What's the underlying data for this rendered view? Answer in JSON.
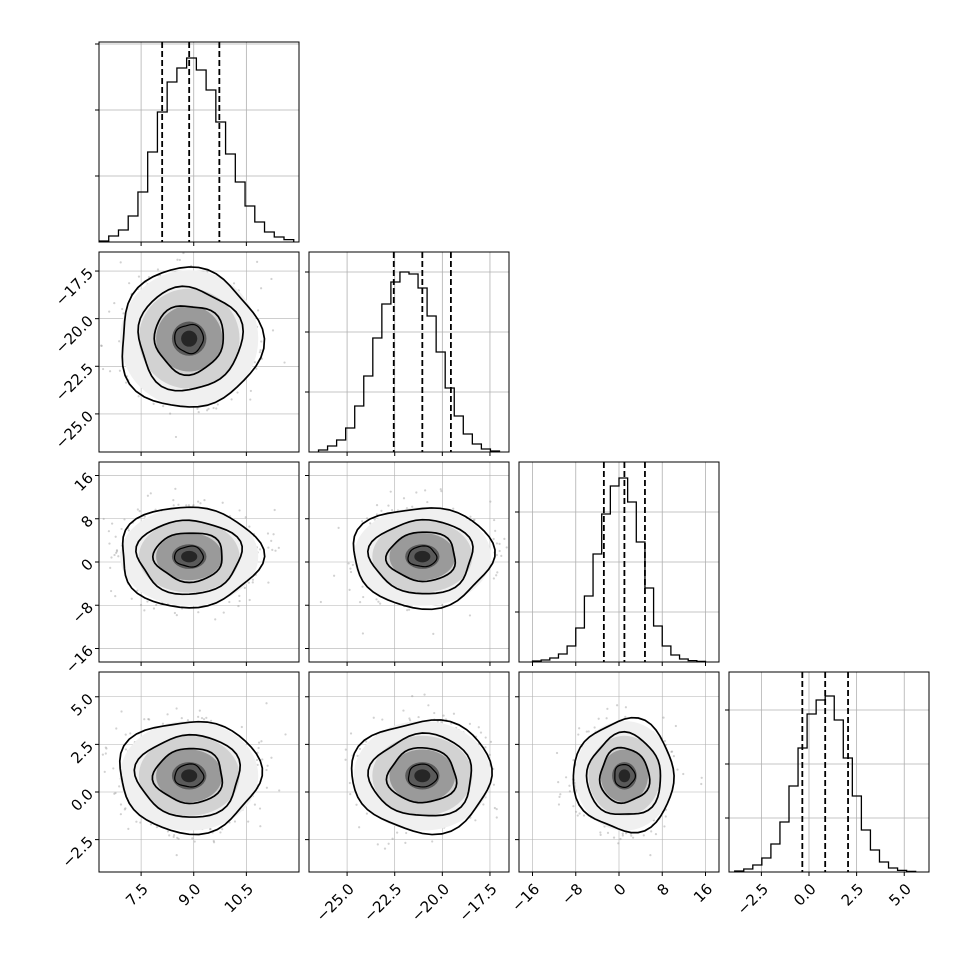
{
  "chart_data": {
    "type": "corner",
    "parameters": 4,
    "grid": true,
    "quantiles": [
      0.16,
      0.5,
      0.84
    ],
    "diagonal_histograms": [
      {
        "type": "histogram",
        "xlim": [
          6.3,
          12.0
        ],
        "ylim": [
          0,
          1.0
        ],
        "x_ticks": [
          "7.5",
          "9.0",
          "10.5"
        ],
        "x_tick_values": [
          7.5,
          9.0,
          10.5
        ],
        "y_grid_values": [
          0.33,
          0.66,
          0.99
        ],
        "quantile_lines": [
          8.1,
          8.87,
          9.73
        ],
        "bin_edges_range": [
          6.3,
          11.85
        ],
        "counts": [
          0.005,
          0.03,
          0.06,
          0.13,
          0.25,
          0.45,
          0.65,
          0.8,
          0.87,
          0.92,
          0.86,
          0.76,
          0.6,
          0.44,
          0.3,
          0.18,
          0.1,
          0.05,
          0.025,
          0.012
        ]
      },
      {
        "type": "histogram",
        "xlim": [
          -27.0,
          -16.5
        ],
        "ylim": [
          0,
          1.0
        ],
        "x_ticks": [
          "−25.0",
          "−22.5",
          "−20.0",
          "−17.5"
        ],
        "x_tick_values": [
          -25.0,
          -22.5,
          -20.0,
          -17.5
        ],
        "y_grid_values": [
          0.3,
          0.6,
          0.9
        ],
        "quantile_lines": [
          -22.55,
          -21.05,
          -19.55
        ],
        "bin_edges_range": [
          -26.5,
          -17.0
        ],
        "counts": [
          0.01,
          0.03,
          0.06,
          0.12,
          0.23,
          0.38,
          0.57,
          0.74,
          0.85,
          0.9,
          0.89,
          0.82,
          0.68,
          0.5,
          0.32,
          0.18,
          0.09,
          0.04,
          0.015,
          0.005
        ]
      },
      {
        "type": "histogram",
        "xlim": [
          -18.5,
          18.5
        ],
        "ylim": [
          0,
          1.0
        ],
        "x_ticks": [
          "−16",
          "−8",
          "0",
          "8",
          "16"
        ],
        "x_tick_values": [
          -16,
          -8,
          0,
          8,
          16
        ],
        "y_grid_values": [
          0.25,
          0.5,
          0.75
        ],
        "quantile_lines": [
          -2.8,
          1.0,
          4.8
        ],
        "bin_edges_range": [
          -16.0,
          16.0
        ],
        "counts": [
          0.005,
          0.01,
          0.02,
          0.04,
          0.08,
          0.17,
          0.33,
          0.54,
          0.74,
          0.88,
          0.92,
          0.8,
          0.6,
          0.37,
          0.18,
          0.08,
          0.035,
          0.015,
          0.007,
          0.003
        ]
      },
      {
        "type": "histogram",
        "xlim": [
          -4.2,
          6.3
        ],
        "ylim": [
          0,
          1.0
        ],
        "x_ticks": [
          "−2.5",
          "0.0",
          "2.5",
          "5.0"
        ],
        "x_tick_values": [
          -2.5,
          0.0,
          2.5,
          5.0
        ],
        "y_grid_values": [
          0.27,
          0.54,
          0.81
        ],
        "quantile_lines": [
          -0.35,
          0.85,
          2.05
        ],
        "bin_edges_range": [
          -3.9,
          5.6
        ],
        "counts": [
          0.005,
          0.015,
          0.035,
          0.07,
          0.14,
          0.25,
          0.43,
          0.62,
          0.79,
          0.86,
          0.88,
          0.76,
          0.57,
          0.38,
          0.21,
          0.11,
          0.05,
          0.02,
          0.008,
          0.003
        ]
      }
    ],
    "y_axis_ticks": [
      null,
      {
        "ticks": [
          "−17.5",
          "−20.0",
          "−22.5",
          "−25.0"
        ],
        "values": [
          -17.5,
          -20.0,
          -22.5,
          -25.0
        ]
      },
      {
        "ticks": [
          "16",
          "8",
          "0",
          "−8",
          "−16"
        ],
        "values": [
          16,
          8,
          0,
          -8,
          -16
        ]
      },
      {
        "ticks": [
          "5.0",
          "2.5",
          "0.0",
          "−2.5"
        ],
        "values": [
          5.0,
          2.5,
          0.0,
          -2.5
        ]
      }
    ],
    "parameter_means": [
      8.87,
      -21.05,
      1.0,
      0.85
    ],
    "parameter_sigmas": [
      0.82,
      1.5,
      3.8,
      1.2
    ],
    "colors": {
      "line": "#000000",
      "grid": "#b0b0b0",
      "scatter": "#9a9a9a",
      "density_dark": "#1a1a1a"
    }
  }
}
